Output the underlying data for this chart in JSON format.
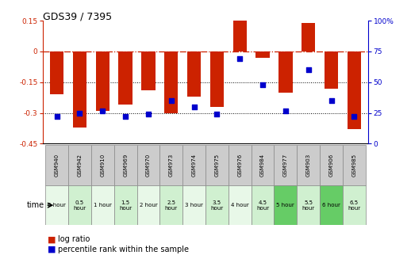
{
  "title": "GDS39 / 7395",
  "samples": [
    "GSM940",
    "GSM942",
    "GSM910",
    "GSM969",
    "GSM970",
    "GSM973",
    "GSM974",
    "GSM975",
    "GSM976",
    "GSM984",
    "GSM977",
    "GSM903",
    "GSM906",
    "GSM985"
  ],
  "time_labels": [
    "0 hour",
    "0.5\nhour",
    "1 hour",
    "1.5\nhour",
    "2 hour",
    "2.5\nhour",
    "3 hour",
    "3.5\nhour",
    "4 hour",
    "4.5\nhour",
    "5 hour",
    "5.5\nhour",
    "6 hour",
    "6.5\nhour"
  ],
  "log_ratio": [
    -0.21,
    -0.37,
    -0.29,
    -0.26,
    -0.19,
    -0.3,
    -0.22,
    -0.27,
    0.15,
    -0.03,
    -0.2,
    0.14,
    -0.18,
    -0.38
  ],
  "percentile": [
    22,
    25,
    27,
    22,
    24,
    35,
    30,
    24,
    69,
    48,
    27,
    60,
    35,
    22
  ],
  "ylim_left": [
    -0.45,
    0.15
  ],
  "ylim_right": [
    0,
    100
  ],
  "yticks_left": [
    0.15,
    0,
    -0.15,
    -0.3,
    -0.45
  ],
  "yticks_right": [
    100,
    75,
    50,
    25,
    0
  ],
  "bar_color": "#cc2200",
  "scatter_color": "#0000cc",
  "dotted_lines": [
    -0.15,
    -0.3
  ],
  "bg_color": "#ffffff",
  "cell_bg_alt0": "#e8f8e8",
  "cell_bg_alt1": "#d0f0d0",
  "cell_bg_dark": "#66cc66",
  "gsm_row_color": "#cccccc",
  "time_row_alt": [
    0,
    1,
    0,
    1,
    0,
    1,
    0,
    1,
    0,
    1,
    2,
    1,
    2,
    1
  ],
  "darker_indices": [
    10,
    12
  ]
}
